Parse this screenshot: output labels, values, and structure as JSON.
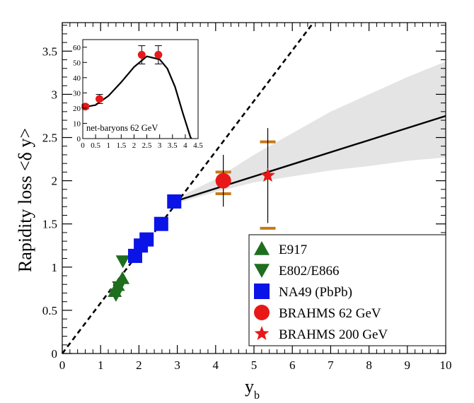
{
  "chart_data": {
    "type": "scatter",
    "xlabel": "y",
    "xlabel_sub": "b",
    "ylabel": "Rapidity loss <δ y>",
    "xlim": [
      0,
      10
    ],
    "ylim": [
      0,
      3.83
    ],
    "x_ticks": [
      "0",
      "1",
      "2",
      "3",
      "4",
      "5",
      "6",
      "7",
      "8",
      "9",
      "10"
    ],
    "y_ticks": [
      "0",
      "0.5",
      "1",
      "1.5",
      "2",
      "2.5",
      "3",
      "3.5"
    ],
    "legend_position": "bottom-right",
    "series": [
      {
        "name": "E917",
        "marker": "triangle-up",
        "color": "#1e6e1e",
        "points": [
          {
            "x": 1.37,
            "y": 0.72
          },
          {
            "x": 1.45,
            "y": 0.79
          },
          {
            "x": 1.57,
            "y": 0.87
          }
        ]
      },
      {
        "name": "E802/E866",
        "marker": "triangle-down",
        "color": "#1e6e1e",
        "points": [
          {
            "x": 1.4,
            "y": 0.68
          },
          {
            "x": 1.48,
            "y": 0.77
          },
          {
            "x": 1.58,
            "y": 1.07
          }
        ]
      },
      {
        "name": "NA49 (PbPb)",
        "marker": "square",
        "color": "#0b14e6",
        "points": [
          {
            "x": 1.9,
            "y": 1.13
          },
          {
            "x": 2.05,
            "y": 1.25
          },
          {
            "x": 2.2,
            "y": 1.32
          },
          {
            "x": 2.58,
            "y": 1.5
          },
          {
            "x": 2.92,
            "y": 1.76
          }
        ]
      },
      {
        "name": "BRAHMS 62 GeV",
        "marker": "circle",
        "color": "#e81818",
        "points": [
          {
            "x": 4.2,
            "y": 2.0,
            "yerr": 0.12
          }
        ]
      },
      {
        "name": "BRAHMS 200 GeV",
        "marker": "star",
        "color": "#e81818",
        "points": [
          {
            "x": 5.36,
            "y": 2.06,
            "yerr": 0.22
          }
        ]
      }
    ],
    "systematic_bars": [
      {
        "x": 4.2,
        "ylow": 1.85,
        "yhigh": 2.1,
        "color": "#c87818"
      },
      {
        "x": 5.36,
        "ylow": 1.45,
        "yhigh": 2.45,
        "color": "#c87818"
      }
    ],
    "lines": {
      "dashed": {
        "x1": 0.0,
        "y1": 0.0,
        "x2": 6.55,
        "y2": 3.83
      },
      "solid": {
        "x1": 3.0,
        "y1": 1.77,
        "x2": 10.0,
        "y2": 2.75
      },
      "band": [
        {
          "x": 3.0,
          "lo": 1.74,
          "hi": 1.8
        },
        {
          "x": 4.0,
          "lo": 1.87,
          "hi": 2.02
        },
        {
          "x": 5.0,
          "lo": 1.98,
          "hi": 2.3
        },
        {
          "x": 6.0,
          "lo": 2.05,
          "hi": 2.55
        },
        {
          "x": 7.0,
          "lo": 2.12,
          "hi": 2.8
        },
        {
          "x": 8.0,
          "lo": 2.17,
          "hi": 3.0
        },
        {
          "x": 9.0,
          "lo": 2.23,
          "hi": 3.2
        },
        {
          "x": 10.0,
          "lo": 2.27,
          "hi": 3.38
        }
      ]
    },
    "inset": {
      "label": "net-baryons 62 GeV",
      "xlim": [
        0,
        4.5
      ],
      "ylim": [
        0,
        65
      ],
      "x_ticks": [
        "0",
        "0.5",
        "1",
        "1.5",
        "2",
        "2.5",
        "3",
        "3.5",
        "4",
        "4.5"
      ],
      "y_ticks": [
        "0",
        "10",
        "20",
        "30",
        "40",
        "50",
        "60"
      ],
      "points": [
        {
          "x": 0.1,
          "y": 21,
          "yerr": 1.5
        },
        {
          "x": 0.65,
          "y": 26,
          "yerr": 3
        },
        {
          "x": 2.3,
          "y": 55,
          "yerr": 6
        },
        {
          "x": 2.95,
          "y": 55,
          "yerr": 6
        }
      ],
      "curve": [
        {
          "x": 0.0,
          "y": 20.5
        },
        {
          "x": 0.5,
          "y": 22
        },
        {
          "x": 1.0,
          "y": 28
        },
        {
          "x": 1.5,
          "y": 37
        },
        {
          "x": 2.0,
          "y": 47
        },
        {
          "x": 2.5,
          "y": 54
        },
        {
          "x": 3.0,
          "y": 52
        },
        {
          "x": 3.3,
          "y": 46
        },
        {
          "x": 3.6,
          "y": 34
        },
        {
          "x": 3.9,
          "y": 17
        },
        {
          "x": 4.2,
          "y": 1
        },
        {
          "x": 4.24,
          "y": 0
        }
      ]
    }
  }
}
